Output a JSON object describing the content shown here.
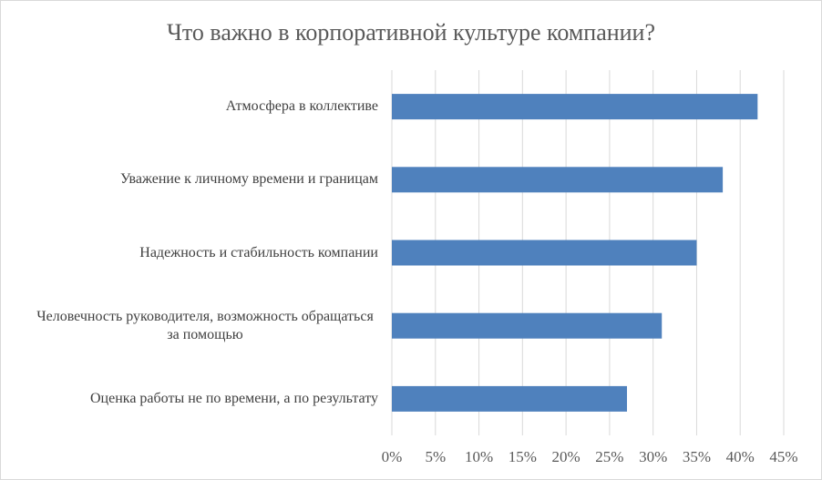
{
  "chart_data": {
    "type": "hbar",
    "title": "Что важно в корпоративной  культуре компании?",
    "categories": [
      "Атмосфера в коллективе",
      "Уважение к личному времени и границам",
      "Надежность и стабильность компании",
      "Человечность руководителя, возможность обращаться за помощью",
      "Оценка работы не по времени, а по результату"
    ],
    "values": [
      42,
      38,
      35,
      31,
      27
    ],
    "color": "#4f81bd",
    "xlim": [
      0,
      45
    ],
    "xticks": [
      {
        "value": 0,
        "label": "0%"
      },
      {
        "value": 5,
        "label": "5%"
      },
      {
        "value": 10,
        "label": "10%"
      },
      {
        "value": 15,
        "label": "15%"
      },
      {
        "value": 20,
        "label": "20%"
      },
      {
        "value": 25,
        "label": "25%"
      },
      {
        "value": 30,
        "label": "30%"
      },
      {
        "value": 35,
        "label": "35%"
      },
      {
        "value": 40,
        "label": "40%"
      },
      {
        "value": 45,
        "label": "45%"
      }
    ],
    "grid": true
  }
}
